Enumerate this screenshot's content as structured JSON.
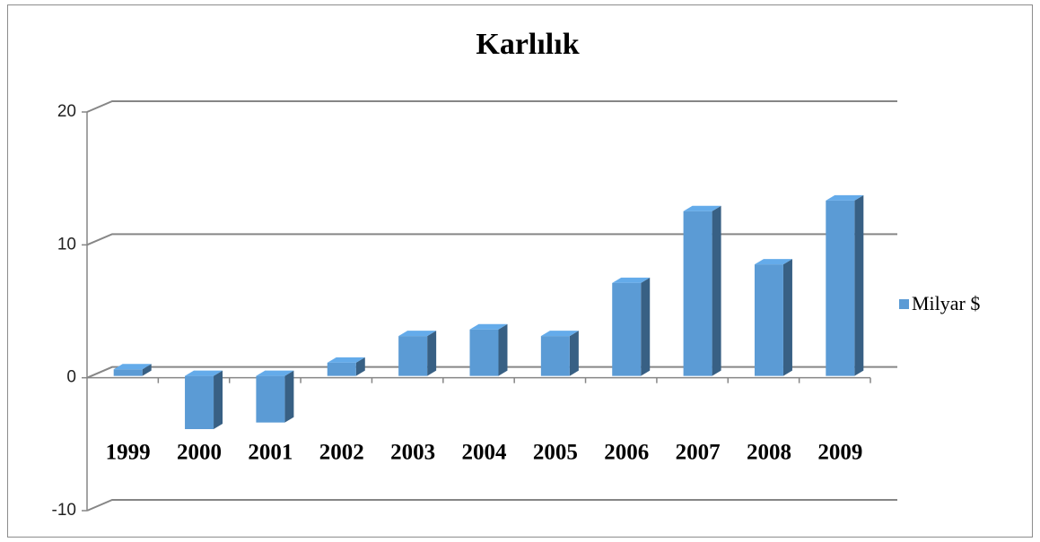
{
  "chart_data": {
    "type": "bar3d",
    "title": "Karlılık",
    "categories": [
      "1999",
      "2000",
      "2001",
      "2002",
      "2003",
      "2004",
      "2005",
      "2006",
      "2007",
      "2008",
      "2009"
    ],
    "series": [
      {
        "name": "Milyar $",
        "color": "#5b9bd5",
        "values": [
          0.5,
          -4,
          -3.5,
          1,
          3,
          3.5,
          3,
          7,
          12.4,
          8.4,
          13.2
        ]
      }
    ],
    "ylim": [
      -10,
      20
    ],
    "yticks": [
      -10,
      0,
      10,
      20
    ],
    "grid": true,
    "legend": "right"
  }
}
